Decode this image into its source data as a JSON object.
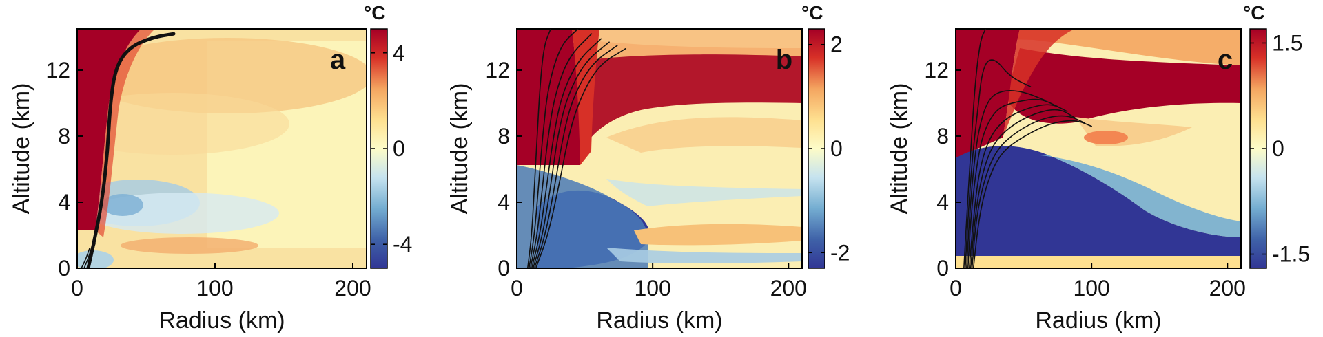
{
  "figure": {
    "type": "multi-panel contour plot"
  },
  "chart_data": [
    {
      "type": "heatmap",
      "panel": "a",
      "xlabel": "Radius (km)",
      "ylabel": "Altitude (km)",
      "xlim": [
        0,
        210
      ],
      "ylim": [
        0,
        14.5
      ],
      "xticks": [
        0,
        100,
        200
      ],
      "yticks": [
        0,
        4,
        8,
        12
      ],
      "colorbar": {
        "unit": "°C",
        "range": [
          -5,
          5
        ],
        "ticks": [
          -4,
          0,
          4
        ]
      },
      "description": "warm anomaly near core aloft, weak cool anomaly 2-5 km",
      "overlay_lines": [
        {
          "width": "thick",
          "points": [
            [
              8,
              0
            ],
            [
              12,
              1.5
            ],
            [
              18,
              4
            ],
            [
              22,
              7
            ],
            [
              24,
              10
            ],
            [
              28,
              12.2
            ],
            [
              38,
              13.4
            ],
            [
              55,
              14.0
            ],
            [
              70,
              14.2
            ]
          ]
        },
        {
          "width": "thin",
          "points": [
            [
              3,
              0
            ],
            [
              6,
              0.5
            ],
            [
              9,
              1.2
            ]
          ]
        },
        {
          "width": "thin",
          "points": [
            [
              5,
              0
            ],
            [
              8,
              0.6
            ],
            [
              11,
              1.4
            ]
          ]
        },
        {
          "width": "thin",
          "points": [
            [
              7,
              0
            ],
            [
              10,
              0.7
            ],
            [
              13,
              1.5
            ]
          ]
        }
      ]
    },
    {
      "type": "heatmap",
      "panel": "b",
      "xlabel": "Radius (km)",
      "ylabel": "Altitude (km)",
      "xlim": [
        0,
        210
      ],
      "ylim": [
        0,
        14.5
      ],
      "xticks": [
        0,
        100,
        200
      ],
      "yticks": [
        0,
        4,
        8,
        12
      ],
      "colorbar": {
        "unit": "°C",
        "range": [
          -2.3,
          2.3
        ],
        "ticks": [
          -2,
          0,
          2
        ]
      },
      "overlay_lines": [
        {
          "points": [
            [
              8,
              0
            ],
            [
              11,
              2
            ],
            [
              13,
              5
            ],
            [
              15,
              8
            ],
            [
              17,
              11
            ],
            [
              20,
              13.5
            ],
            [
              25,
              14.5
            ]
          ]
        },
        {
          "points": [
            [
              9,
              0
            ],
            [
              13,
              2
            ],
            [
              16,
              5
            ],
            [
              19,
              8
            ],
            [
              23,
              11
            ],
            [
              32,
              13.5
            ],
            [
              45,
              14.5
            ]
          ]
        },
        {
          "points": [
            [
              10,
              0
            ],
            [
              15,
              2
            ],
            [
              19,
              5
            ],
            [
              23,
              8
            ],
            [
              28,
              10.5
            ],
            [
              38,
              12.8
            ],
            [
              55,
              14.2
            ]
          ]
        },
        {
          "points": [
            [
              11,
              0
            ],
            [
              17,
              2
            ],
            [
              22,
              5
            ],
            [
              27,
              8
            ],
            [
              33,
              10.5
            ],
            [
              45,
              12.6
            ],
            [
              62,
              13.9
            ]
          ]
        },
        {
          "points": [
            [
              12,
              0
            ],
            [
              19,
              2
            ],
            [
              25,
              5
            ],
            [
              30,
              8
            ],
            [
              37,
              10.4
            ],
            [
              50,
              12.5
            ],
            [
              68,
              13.7
            ]
          ]
        },
        {
          "points": [
            [
              13,
              0
            ],
            [
              21,
              2
            ],
            [
              28,
              5
            ],
            [
              34,
              8
            ],
            [
              41,
              10.3
            ],
            [
              55,
              12.4
            ],
            [
              74,
              13.5
            ]
          ]
        },
        {
          "points": [
            [
              14,
              0
            ],
            [
              23,
              2
            ],
            [
              31,
              5
            ],
            [
              38,
              8
            ],
            [
              46,
              10.2
            ],
            [
              60,
              12.3
            ],
            [
              80,
              13.3
            ]
          ]
        }
      ]
    },
    {
      "type": "heatmap",
      "panel": "c",
      "xlabel": "Radius (km)",
      "ylabel": "Altitude (km)",
      "xlim": [
        0,
        210
      ],
      "ylim": [
        0,
        14.5
      ],
      "xticks": [
        0,
        100,
        200
      ],
      "yticks": [
        0,
        4,
        8,
        12
      ],
      "colorbar": {
        "unit": "°C",
        "range": [
          -1.7,
          1.7
        ],
        "ticks": [
          -1.5,
          0,
          1.5
        ]
      },
      "overlay_lines": [
        {
          "points": [
            [
              6,
              0
            ],
            [
              8,
              3
            ],
            [
              11,
              7
            ],
            [
              14,
              11
            ],
            [
              18,
              13.8
            ],
            [
              22,
              14.5
            ]
          ]
        },
        {
          "points": [
            [
              7,
              0
            ],
            [
              9,
              3
            ],
            [
              12,
              6.5
            ],
            [
              16,
              9.5
            ],
            [
              20,
              12.3
            ],
            [
              28,
              12.8
            ],
            [
              40,
              11.6
            ],
            [
              55,
              11.0
            ]
          ]
        },
        {
          "points": [
            [
              8,
              0
            ],
            [
              10,
              3
            ],
            [
              13,
              6
            ],
            [
              17,
              8.5
            ],
            [
              24,
              10.3
            ],
            [
              35,
              10.8
            ],
            [
              50,
              10.7
            ],
            [
              65,
              10.2
            ]
          ]
        },
        {
          "points": [
            [
              9,
              0
            ],
            [
              11,
              3
            ],
            [
              15,
              6
            ],
            [
              20,
              8.2
            ],
            [
              30,
              9.7
            ],
            [
              45,
              10.1
            ],
            [
              62,
              10.3
            ],
            [
              75,
              9.8
            ]
          ]
        },
        {
          "points": [
            [
              10,
              0
            ],
            [
              13,
              3
            ],
            [
              17,
              5.8
            ],
            [
              24,
              7.8
            ],
            [
              35,
              9.0
            ],
            [
              52,
              9.7
            ],
            [
              70,
              10.0
            ],
            [
              82,
              9.5
            ]
          ]
        },
        {
          "points": [
            [
              11,
              0
            ],
            [
              14,
              3
            ],
            [
              19,
              5.6
            ],
            [
              27,
              7.5
            ],
            [
              40,
              8.6
            ],
            [
              58,
              9.4
            ],
            [
              76,
              9.7
            ],
            [
              88,
              9.1
            ]
          ]
        },
        {
          "points": [
            [
              12,
              0
            ],
            [
              15,
              3
            ],
            [
              21,
              5.4
            ],
            [
              30,
              7.2
            ],
            [
              45,
              8.3
            ],
            [
              64,
              9.1
            ],
            [
              82,
              9.3
            ],
            [
              95,
              8.8
            ]
          ]
        },
        {
          "points": [
            [
              13,
              0
            ],
            [
              17,
              3
            ],
            [
              23,
              5.2
            ],
            [
              33,
              7.0
            ],
            [
              50,
              8.0
            ],
            [
              70,
              8.8
            ],
            [
              88,
              9.0
            ],
            [
              100,
              8.6
            ]
          ]
        }
      ]
    }
  ]
}
